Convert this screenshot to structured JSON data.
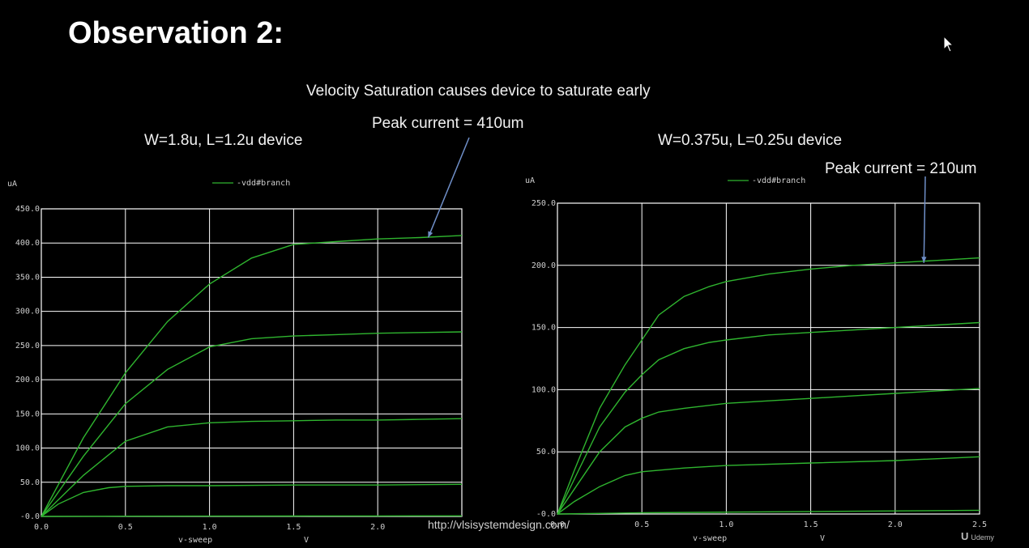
{
  "slide": {
    "title": "Observation 2:",
    "subtitle": "Velocity Saturation causes device to saturate early",
    "watermark": "http://vlsisystemdesign.com/",
    "logo": "Udemy"
  },
  "colors": {
    "trace": "#2fb52f",
    "grid": "#ffffff",
    "annotation_arrow": "#6f8fc8",
    "background": "#000000"
  },
  "chart_data": [
    {
      "type": "line",
      "caption": "W=1.8u, L=1.2u device",
      "annotation": "Peak current = 410um",
      "annotation_point": {
        "x": 2.3,
        "y": 408
      },
      "ylabel": "uA",
      "xlabel": "v-sweep",
      "xunit": "V",
      "legend": "-vdd#branch",
      "legend_position": "top-center",
      "xlim": [
        0,
        2.5
      ],
      "ylim": [
        0,
        450
      ],
      "xticks": [
        "0.0",
        "0.5",
        "1.0",
        "1.5",
        "2.0"
      ],
      "yticks": [
        "-0.0",
        "50.0",
        "100.0",
        "150.0",
        "200.0",
        "250.0",
        "300.0",
        "350.0",
        "400.0",
        "450.0"
      ],
      "grid": true,
      "series": [
        {
          "x": [
            0,
            0.25,
            0.5,
            0.75,
            1.0,
            1.25,
            1.5,
            1.75,
            2.0,
            2.25,
            2.5
          ],
          "values": [
            0,
            115,
            210,
            285,
            340,
            378,
            398,
            402,
            406,
            408,
            411
          ]
        },
        {
          "x": [
            0,
            0.25,
            0.5,
            0.75,
            1.0,
            1.25,
            1.5,
            1.75,
            2.0,
            2.25,
            2.5
          ],
          "values": [
            0,
            88,
            165,
            215,
            248,
            260,
            264,
            266,
            268,
            269,
            270
          ]
        },
        {
          "x": [
            0,
            0.25,
            0.5,
            0.75,
            1.0,
            1.25,
            1.5,
            1.75,
            2.0,
            2.25,
            2.5
          ],
          "values": [
            0,
            60,
            110,
            131,
            137,
            139,
            140,
            141,
            141,
            142,
            143
          ]
        },
        {
          "x": [
            0,
            0.1,
            0.25,
            0.4,
            0.5,
            0.75,
            1.0,
            1.5,
            2.0,
            2.5
          ],
          "values": [
            0,
            18,
            35,
            42,
            44,
            45,
            45,
            46,
            46,
            47
          ]
        },
        {
          "x": [
            0,
            0.5,
            1.0,
            1.5,
            2.0,
            2.5
          ],
          "values": [
            0,
            0.3,
            0.5,
            0.6,
            0.7,
            0.8
          ]
        }
      ]
    },
    {
      "type": "line",
      "caption": "W=0.375u, L=0.25u device",
      "annotation": "Peak current = 210um",
      "annotation_point": {
        "x": 2.17,
        "y": 202
      },
      "ylabel": "uA",
      "xlabel": "v-sweep",
      "xunit": "V",
      "legend": "-vdd#branch",
      "legend_position": "top-center",
      "xlim": [
        0,
        2.5
      ],
      "ylim": [
        0,
        250
      ],
      "xticks": [
        "0.0",
        "0.5",
        "1.0",
        "1.5",
        "2.0",
        "2.5"
      ],
      "yticks": [
        "-0.0",
        "50.0",
        "100.0",
        "150.0",
        "200.0",
        "250.0"
      ],
      "grid": true,
      "series": [
        {
          "x": [
            0,
            0.1,
            0.25,
            0.4,
            0.5,
            0.6,
            0.75,
            0.9,
            1.0,
            1.25,
            1.5,
            1.75,
            2.0,
            2.25,
            2.5
          ],
          "values": [
            0,
            35,
            85,
            120,
            140,
            160,
            175,
            183,
            187,
            193,
            197,
            200,
            202,
            204,
            206
          ]
        },
        {
          "x": [
            0,
            0.1,
            0.25,
            0.4,
            0.5,
            0.6,
            0.75,
            0.9,
            1.0,
            1.25,
            1.5,
            1.75,
            2.0,
            2.25,
            2.5
          ],
          "values": [
            0,
            28,
            70,
            98,
            112,
            124,
            133,
            138,
            140,
            144,
            146,
            148,
            150,
            152,
            154
          ]
        },
        {
          "x": [
            0,
            0.1,
            0.25,
            0.4,
            0.5,
            0.6,
            0.75,
            1.0,
            1.25,
            1.5,
            1.75,
            2.0,
            2.25,
            2.5
          ],
          "values": [
            0,
            20,
            50,
            70,
            77,
            82,
            85,
            89,
            91,
            93,
            95,
            97,
            99,
            101
          ]
        },
        {
          "x": [
            0,
            0.1,
            0.25,
            0.4,
            0.5,
            0.75,
            1.0,
            1.5,
            2.0,
            2.5
          ],
          "values": [
            0,
            10,
            22,
            31,
            34,
            37,
            39,
            41,
            43,
            46
          ]
        },
        {
          "x": [
            0,
            0.5,
            1.0,
            1.5,
            2.0,
            2.5
          ],
          "values": [
            0,
            1,
            1.5,
            2,
            2.5,
            3
          ]
        }
      ]
    }
  ]
}
